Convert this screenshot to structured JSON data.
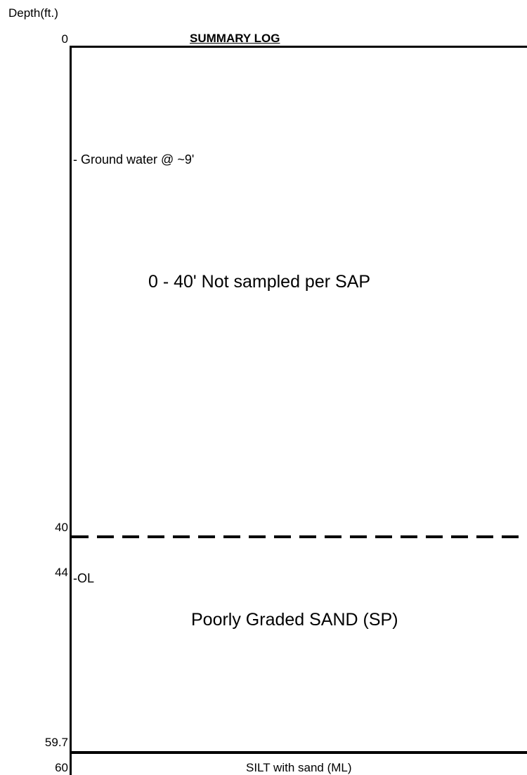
{
  "axis": {
    "label": "Depth(ft.)"
  },
  "title": "SUMMARY LOG",
  "ticks": [
    {
      "depth": 0,
      "label": "0"
    },
    {
      "depth": 40,
      "label": "40"
    },
    {
      "depth": 44,
      "label": "44"
    },
    {
      "depth": 59.7,
      "label": "59.7"
    },
    {
      "depth": 60,
      "label": "60"
    }
  ],
  "annotations": {
    "ground_water": "- Ground water @ ~9'",
    "ol": "-OL"
  },
  "units": {
    "not_sampled": "0 - 40' Not sampled per SAP",
    "sand": "Poorly Graded SAND (SP)",
    "silt": "SILT with sand (ML)"
  },
  "boundaries": [
    {
      "depth": 40,
      "style": "dashed"
    },
    {
      "depth": 59.7,
      "style": "solid"
    }
  ]
}
